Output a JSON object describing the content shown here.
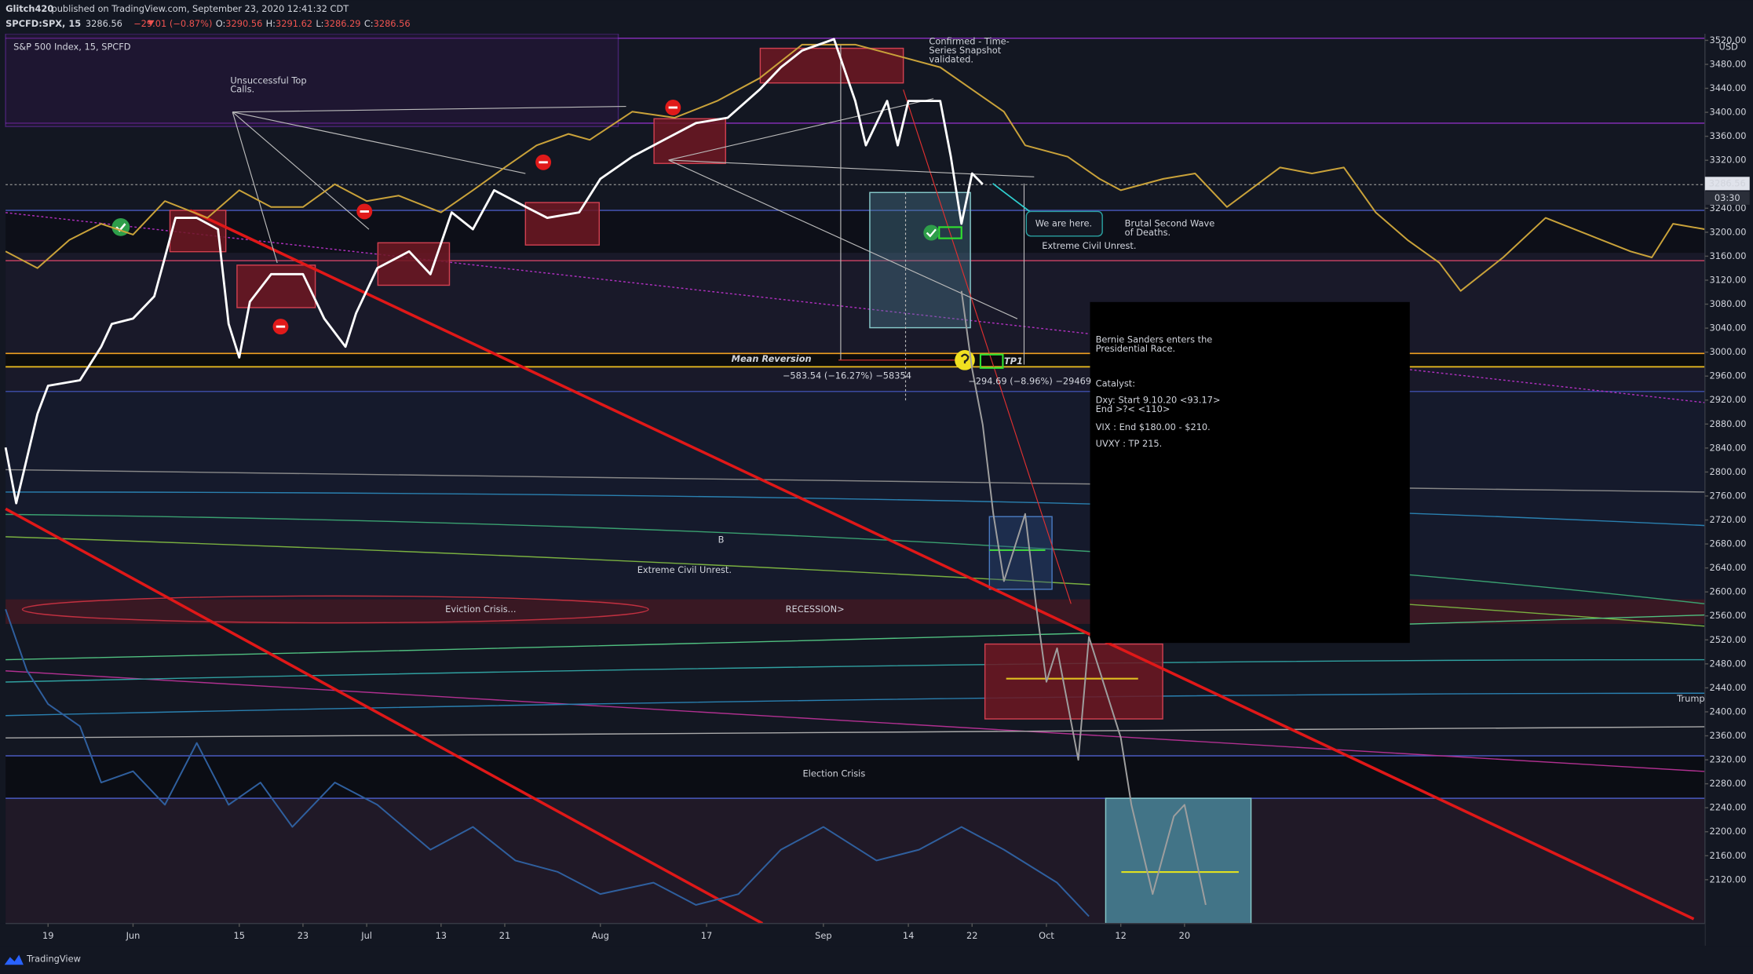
{
  "header": {
    "author": "Glitch420",
    "published": " published on TradingView.com, September 23, 2020 12:41:32 CDT",
    "symbol": "SPCFD:SPX, 15",
    "last": "3286.56",
    "change": "−29.01 (−0.87%)",
    "ohlc": [
      [
        "O:",
        "3290.56"
      ],
      [
        "H:",
        "3291.62"
      ],
      [
        "L:",
        "3286.29"
      ],
      [
        "C:",
        "3286.56"
      ]
    ],
    "legend": "S&P 500 Index, 15, SPCFD",
    "price_tag": "3286.56",
    "countdown": "03:30",
    "currency": "USD",
    "footer": "TradingView"
  },
  "chart_data": {
    "type": "line",
    "xlim": [
      -4,
      156
    ],
    "ylim": [
      2047,
      3531
    ],
    "xticks": [
      {
        "value": 0,
        "label": "19"
      },
      {
        "value": 8,
        "label": "Jun"
      },
      {
        "value": 18,
        "label": "15"
      },
      {
        "value": 24,
        "label": "23"
      },
      {
        "value": 30,
        "label": "Jul"
      },
      {
        "value": 37,
        "label": "13"
      },
      {
        "value": 43,
        "label": "21"
      },
      {
        "value": 52,
        "label": "Aug"
      },
      {
        "value": 62,
        "label": "17"
      },
      {
        "value": 73,
        "label": "Sep"
      },
      {
        "value": 81,
        "label": "14"
      },
      {
        "value": 87,
        "label": "22"
      },
      {
        "value": 94,
        "label": "Oct"
      },
      {
        "value": 101,
        "label": "12"
      },
      {
        "value": 107,
        "label": "20"
      }
    ],
    "yticks": [
      {
        "value": 2120,
        "label": "2120.00"
      },
      {
        "value": 2160,
        "label": "2160.00"
      },
      {
        "value": 2200,
        "label": "2200.00"
      },
      {
        "value": 2240,
        "label": "2240.00"
      },
      {
        "value": 2280,
        "label": "2280.00"
      },
      {
        "value": 2320,
        "label": "2320.00"
      },
      {
        "value": 2360,
        "label": "2360.00"
      },
      {
        "value": 2400,
        "label": "2400.00"
      },
      {
        "value": 2440,
        "label": "2440.00"
      },
      {
        "value": 2480,
        "label": "2480.00"
      },
      {
        "value": 2520,
        "label": "2520.00"
      },
      {
        "value": 2560,
        "label": "2560.00"
      },
      {
        "value": 2600,
        "label": "2600.00"
      },
      {
        "value": 2640,
        "label": "2640.00"
      },
      {
        "value": 2680,
        "label": "2680.00"
      },
      {
        "value": 2720,
        "label": "2720.00"
      },
      {
        "value": 2760,
        "label": "2760.00"
      },
      {
        "value": 2800,
        "label": "2800.00"
      },
      {
        "value": 2840,
        "label": "2840.00"
      },
      {
        "value": 2880,
        "label": "2880.00"
      },
      {
        "value": 2920,
        "label": "2920.00"
      },
      {
        "value": 2960,
        "label": "2960.00"
      },
      {
        "value": 3000,
        "label": "3000.00"
      },
      {
        "value": 3040,
        "label": "3040.00"
      },
      {
        "value": 3080,
        "label": "3080.00"
      },
      {
        "value": 3120,
        "label": "3120.00"
      },
      {
        "value": 3160,
        "label": "3160.00"
      },
      {
        "value": 3200,
        "label": "3200.00"
      },
      {
        "value": 3240,
        "label": "3240.00"
      },
      {
        "value": 3280,
        "label": "3280.00"
      },
      {
        "value": 3320,
        "label": "3320.00"
      },
      {
        "value": 3360,
        "label": "3360.00"
      },
      {
        "value": 3400,
        "label": "3400.00"
      },
      {
        "value": 3440,
        "label": "3440.00"
      },
      {
        "value": 3480,
        "label": "3480.00"
      },
      {
        "value": 3520,
        "label": "3520.00"
      }
    ],
    "grid": false,
    "series": [
      {
        "color": "#c9a23a",
        "x": [
          -4,
          -1,
          2,
          5,
          8,
          11,
          15,
          18,
          21,
          24,
          27,
          30,
          33,
          37,
          40,
          43,
          46,
          49,
          51,
          55,
          59,
          63,
          67,
          71,
          76,
          80,
          84,
          87,
          90,
          92,
          96,
          99,
          101,
          105,
          108,
          111,
          116,
          119,
          122,
          125,
          128,
          131,
          133,
          137,
          141,
          145,
          149,
          151,
          153,
          156
        ],
        "values": [
          3168,
          3140,
          3187,
          3214,
          3196,
          3252,
          3224,
          3270,
          3242,
          3242,
          3280,
          3252,
          3261,
          3233,
          3270,
          3308,
          3345,
          3364,
          3354,
          3401,
          3391,
          3419,
          3457,
          3513,
          3513,
          3494,
          3475,
          3438,
          3401,
          3345,
          3326,
          3289,
          3270,
          3289,
          3298,
          3242,
          3308,
          3298,
          3308,
          3233,
          3187,
          3149,
          3102,
          3158,
          3224,
          3196,
          3168,
          3158,
          3214,
          3205
        ]
      },
      {
        "color": "#2f5f9e",
        "x": [
          -4,
          -2,
          0,
          3,
          5,
          8,
          11,
          14,
          17,
          20,
          23,
          27,
          31,
          36,
          40,
          44,
          48,
          52,
          57,
          61,
          65,
          69,
          73,
          78,
          82,
          86,
          90,
          95,
          98
        ],
        "values": [
          2571,
          2469,
          2413,
          2376,
          2282,
          2301,
          2245,
          2348,
          2245,
          2282,
          2208,
          2282,
          2245,
          2170,
          2208,
          2152,
          2133,
          2096,
          2115,
          2078,
          2096,
          2170,
          2208,
          2152,
          2170,
          2208,
          2170,
          2115,
          2059
        ]
      },
      {
        "color": "#9e9e9e",
        "x": [
          86,
          87,
          88,
          89,
          90,
          92,
          93,
          94,
          95,
          97,
          98,
          99,
          101,
          102,
          104,
          106,
          107,
          109
        ],
        "values": [
          3102,
          2972,
          2879,
          2730,
          2618,
          2730,
          2581,
          2450,
          2506,
          2320,
          2525,
          2469,
          2357,
          2245,
          2096,
          2226,
          2245,
          2078
        ]
      },
      {
        "color": "#ffffff",
        "x": [
          -4,
          -3,
          -1,
          0,
          3,
          5,
          6,
          8,
          10,
          11,
          12,
          14,
          16,
          17,
          18,
          19,
          21,
          24,
          26,
          28,
          29,
          31,
          34,
          36,
          38,
          40,
          42,
          45,
          47,
          50,
          52,
          55,
          58,
          61,
          64,
          67,
          69,
          71,
          74,
          76,
          77,
          78,
          79,
          80,
          81,
          84,
          85,
          86,
          87,
          88
        ],
        "values": [
          2841,
          2748,
          2897,
          2944,
          2953,
          3009,
          3047,
          3056,
          3093,
          3158,
          3224,
          3224,
          3205,
          3047,
          2991,
          3084,
          3130,
          3130,
          3056,
          3009,
          3065,
          3140,
          3168,
          3130,
          3233,
          3205,
          3270,
          3242,
          3224,
          3233,
          3289,
          3326,
          3354,
          3382,
          3391,
          3438,
          3475,
          3503,
          3522,
          3419,
          3345,
          3382,
          3419,
          3345,
          3419,
          3419,
          3326,
          3214,
          3298,
          3280
        ]
      }
    ],
    "annotations": [
      [
        "Unsuccessful Top",
        "Calls."
      ],
      [
        "Confirmed - Time-",
        "Series Snapshot",
        "validated."
      ],
      [
        "We are here."
      ],
      [
        "Brutal Second Wave",
        "of Deaths."
      ],
      [
        "Extreme Civil Unrest."
      ],
      [
        "Mean Reversion"
      ],
      [
        "TP1"
      ],
      [
        "−583.54 (−16.27%) −58354"
      ],
      [
        "−294.69 (−8.96%) −29469"
      ],
      [
        "B"
      ],
      [
        "Extreme Civil Unrest."
      ],
      [
        "Eviction Crisis..."
      ],
      [
        "RECESSION>"
      ],
      [
        "Election Crisis"
      ],
      [
        "Trump"
      ],
      [
        "Bernie Sanders enters the",
        "Presidential Race."
      ],
      [
        "Catalyst:"
      ],
      [
        "Dxy: Start 9.10.20 <93.17>",
        "End >?< <110>"
      ],
      [
        "VIX : End $180.00 - $210."
      ],
      [
        "UVXY : TP 215."
      ]
    ]
  }
}
